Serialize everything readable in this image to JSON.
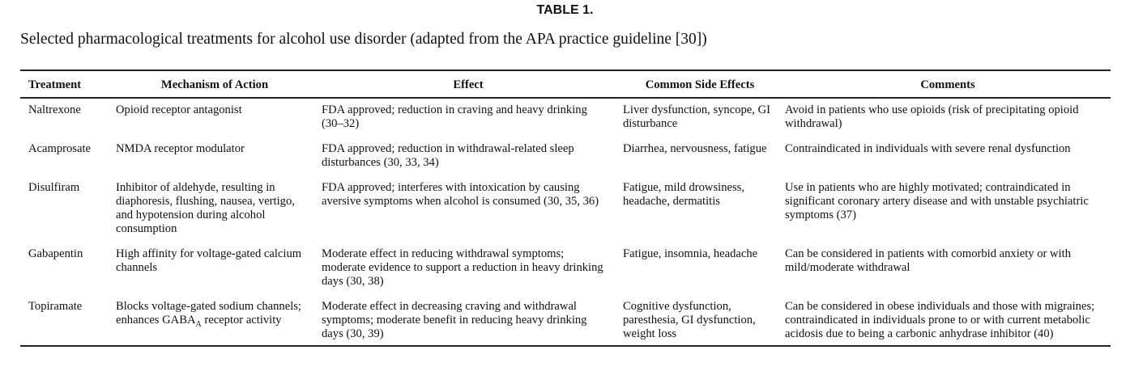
{
  "title": "TABLE 1.",
  "caption": "Selected pharmacological treatments for alcohol use disorder (adapted from the APA practice guideline [30])",
  "headers": [
    "Treatment",
    "Mechanism of Action",
    "Effect",
    "Common Side Effects",
    "Comments"
  ],
  "rows": [
    {
      "treatment": "Naltrexone",
      "mechanism": "Opioid receptor antagonist",
      "effect": "FDA approved; reduction in craving and heavy drinking (30–32)",
      "side_effects": "Liver dysfunction, syncope, GI disturbance",
      "comments": "Avoid in patients who use opioids (risk of precipitating opioid withdrawal)"
    },
    {
      "treatment": "Acamprosate",
      "mechanism": "NMDA receptor modulator",
      "effect": "FDA approved; reduction in withdrawal-related sleep disturbances (30, 33, 34)",
      "side_effects": "Diarrhea, nervousness, fatigue",
      "comments": "Contraindicated in individuals with severe renal dysfunction"
    },
    {
      "treatment": "Disulfiram",
      "mechanism": "Inhibitor of aldehyde, resulting in diaphoresis, flushing, nausea, vertigo, and hypotension during alcohol consumption",
      "effect": "FDA approved; interferes with intoxication by causing aversive symptoms when alcohol is consumed (30, 35, 36)",
      "side_effects": "Fatigue, mild drowsiness, headache, dermatitis",
      "comments": "Use in patients who are highly motivated; contraindicated in significant coronary artery disease and with unstable psychiatric symptoms (37)"
    },
    {
      "treatment": "Gabapentin",
      "mechanism": "High affinity for voltage-gated calcium channels",
      "effect": "Moderate effect in reducing withdrawal symptoms; moderate evidence to support a reduction in heavy drinking days (30, 38)",
      "side_effects": "Fatigue, insomnia, headache",
      "comments": "Can be considered in patients with comorbid anxiety or with mild/moderate withdrawal"
    },
    {
      "treatment": "Topiramate",
      "mechanism_pre": "Blocks voltage-gated sodium channels; enhances GABA",
      "mechanism_sub": "A",
      "mechanism_post": " receptor activity",
      "effect": "Moderate effect in decreasing craving and withdrawal symptoms; moderate benefit in reducing heavy drinking days (30, 39)",
      "side_effects": "Cognitive dysfunction, paresthesia, GI dysfunction, weight loss",
      "comments": "Can be considered in obese individuals and those with migraines; contraindicated in individuals prone to or with current metabolic acidosis due to being a carbonic anhydrase inhibitor (40)"
    }
  ]
}
